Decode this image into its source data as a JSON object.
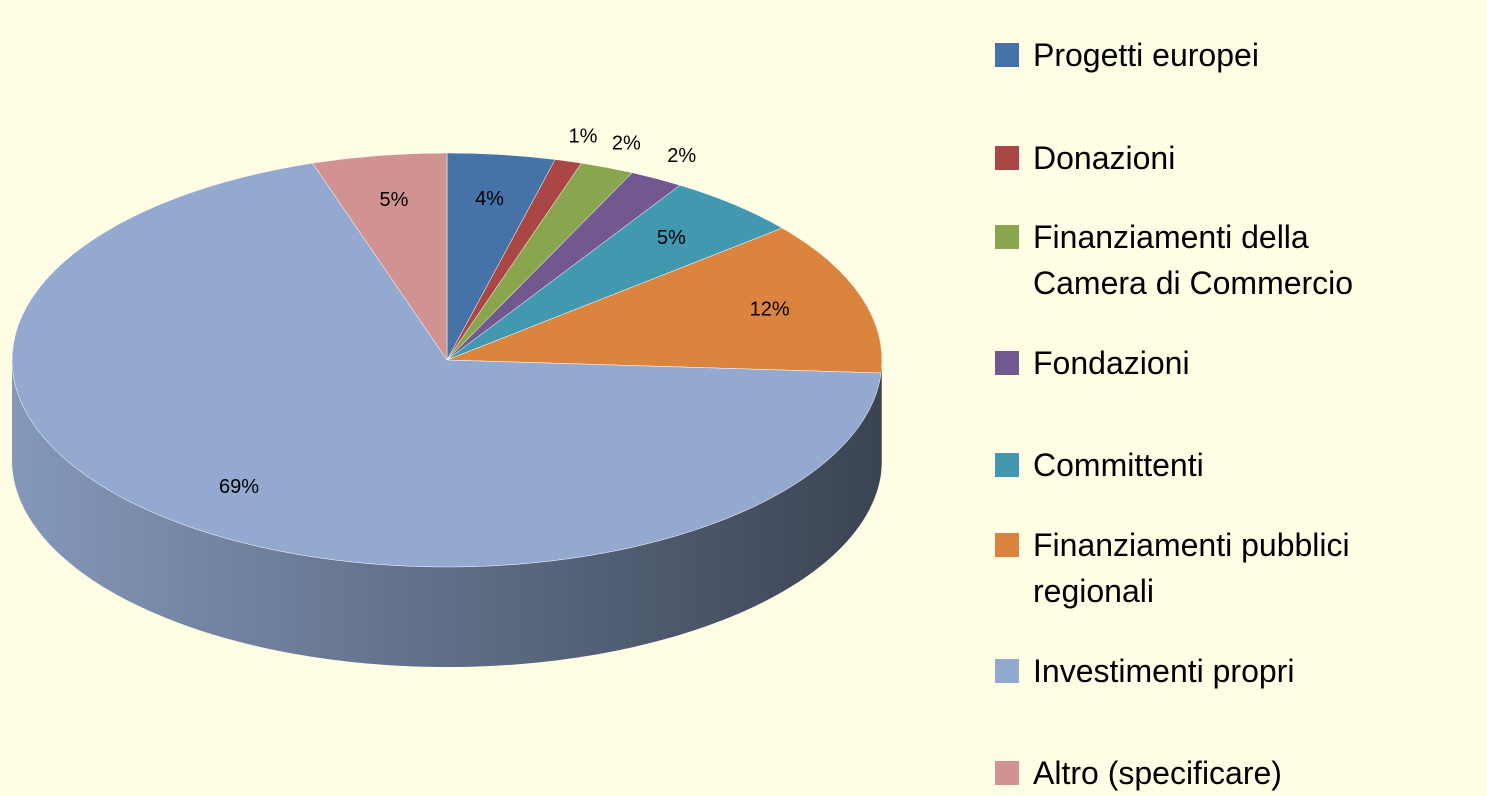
{
  "chart_data": {
    "type": "pie",
    "categories": [
      "Progetti europei",
      "Donazioni",
      "Finanziamenti della Camera di Commercio",
      "Fondazioni",
      "Committenti",
      "Finanziamenti pubblici regionali",
      "Investimenti propri",
      "Altro (specificare)"
    ],
    "values": [
      4,
      1,
      2,
      2,
      5,
      12,
      69,
      5
    ],
    "value_labels": [
      "4%",
      "1%",
      "2%",
      "2%",
      "5%",
      "12%",
      "69%",
      "5%"
    ],
    "colors": [
      "#4572a7",
      "#aa4643",
      "#89a54e",
      "#71588f",
      "#4198af",
      "#db843d",
      "#93a9cf",
      "#d19392"
    ],
    "legend": "right"
  }
}
